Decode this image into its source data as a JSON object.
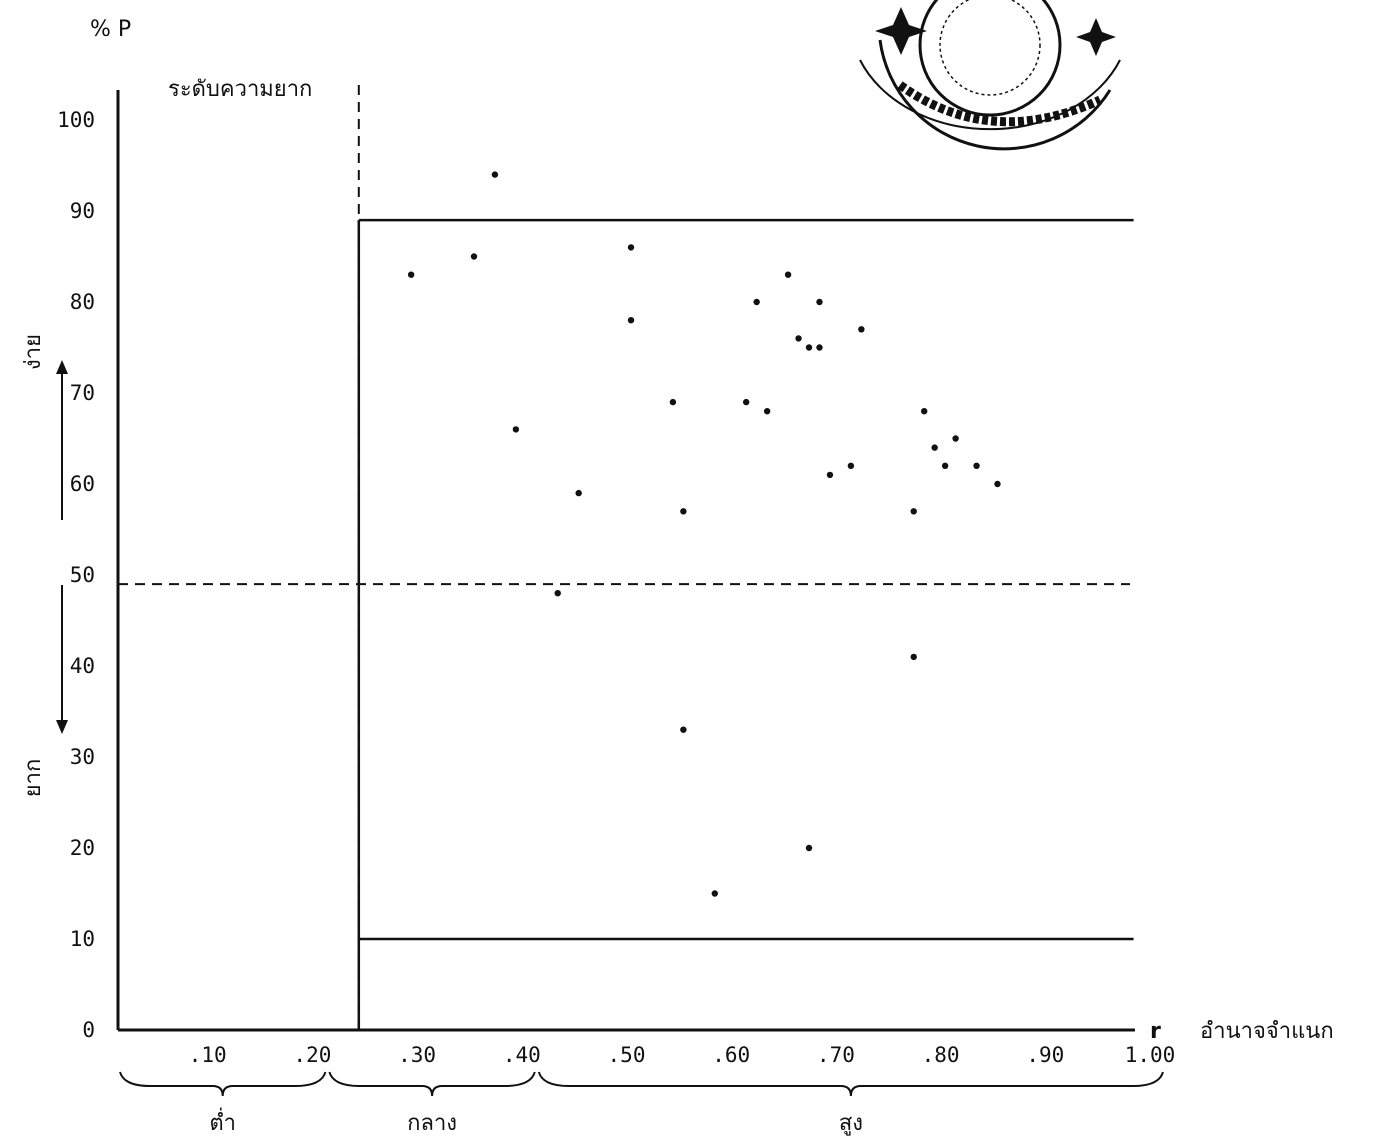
{
  "chart_data": {
    "type": "scatter",
    "y_unit_label": "% P",
    "x_symbol": "r",
    "x_axis_name": "อำนาจจำแนก",
    "difficulty_label": "ระดับความยาก",
    "y_direction_easy": "ง่าย",
    "y_direction_hard": "ยาก",
    "xlim": [
      0,
      1.0
    ],
    "ylim": [
      0,
      100
    ],
    "y_ticks": [
      "0",
      "10",
      "20",
      "30",
      "40",
      "50",
      "60",
      "70",
      "80",
      "90",
      "100"
    ],
    "x_ticks": [
      ".10",
      ".20",
      ".30",
      ".40",
      ".50",
      ".60",
      ".70",
      ".80",
      ".90",
      "1.00"
    ],
    "x_tick_values": [
      0.1,
      0.2,
      0.3,
      0.4,
      0.5,
      0.6,
      0.7,
      0.8,
      0.9,
      1.0
    ],
    "group_labels": [
      {
        "label": "ต่ำ",
        "range": [
          0.0,
          0.2
        ]
      },
      {
        "label": "กลาง",
        "range": [
          0.2,
          0.4
        ]
      },
      {
        "label": "สูง",
        "range": [
          0.4,
          1.0
        ]
      }
    ],
    "reference_lines": {
      "dashed_vertical_x": 0.23,
      "dashed_horizontal_y": 49,
      "acceptance_region": {
        "x_min": 0.23,
        "x_max": 0.97,
        "y_min": 10,
        "y_max": 89
      }
    },
    "points": [
      {
        "x": 0.36,
        "y": 94
      },
      {
        "x": 0.34,
        "y": 85
      },
      {
        "x": 0.28,
        "y": 83
      },
      {
        "x": 0.49,
        "y": 86
      },
      {
        "x": 0.49,
        "y": 78
      },
      {
        "x": 0.64,
        "y": 83
      },
      {
        "x": 0.61,
        "y": 80
      },
      {
        "x": 0.67,
        "y": 80
      },
      {
        "x": 0.65,
        "y": 76
      },
      {
        "x": 0.66,
        "y": 75
      },
      {
        "x": 0.67,
        "y": 75
      },
      {
        "x": 0.71,
        "y": 77
      },
      {
        "x": 0.53,
        "y": 69
      },
      {
        "x": 0.6,
        "y": 69
      },
      {
        "x": 0.62,
        "y": 68
      },
      {
        "x": 0.77,
        "y": 68
      },
      {
        "x": 0.38,
        "y": 66
      },
      {
        "x": 0.8,
        "y": 65
      },
      {
        "x": 0.78,
        "y": 64
      },
      {
        "x": 0.7,
        "y": 62
      },
      {
        "x": 0.79,
        "y": 62
      },
      {
        "x": 0.82,
        "y": 62
      },
      {
        "x": 0.68,
        "y": 61
      },
      {
        "x": 0.84,
        "y": 60
      },
      {
        "x": 0.44,
        "y": 59
      },
      {
        "x": 0.54,
        "y": 57
      },
      {
        "x": 0.76,
        "y": 57
      },
      {
        "x": 0.42,
        "y": 48
      },
      {
        "x": 0.76,
        "y": 41
      },
      {
        "x": 0.54,
        "y": 33
      },
      {
        "x": 0.66,
        "y": 20
      },
      {
        "x": 0.57,
        "y": 15
      }
    ]
  }
}
